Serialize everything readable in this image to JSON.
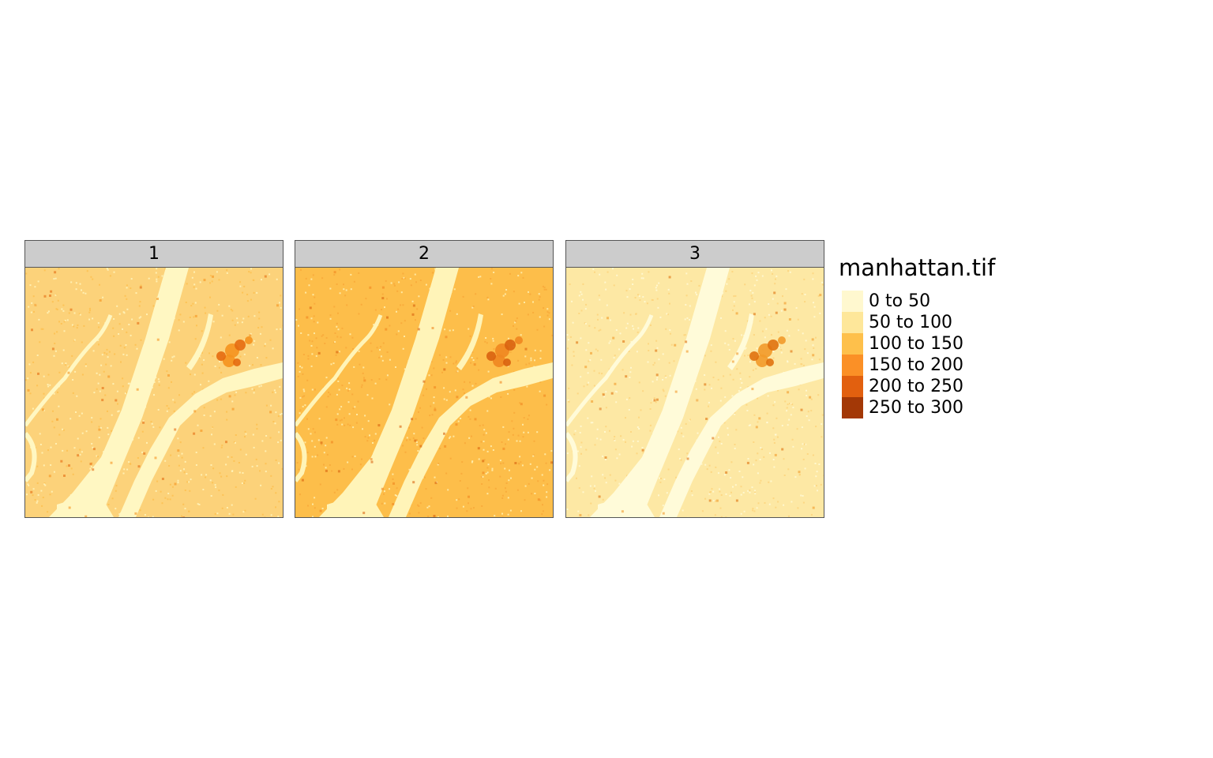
{
  "map": {
    "panels": [
      {
        "label": "1",
        "background": "#fcd27a",
        "water": "#fff7c2",
        "hotspots": [
          "#f5921e",
          "#e56a10"
        ],
        "speckle": "#fdbf4f"
      },
      {
        "label": "2",
        "background": "#fdbe4a",
        "water": "#fff4b8",
        "hotspots": [
          "#f08620",
          "#d9620f"
        ],
        "speckle": "#f7a838"
      },
      {
        "label": "3",
        "background": "#fde8a4",
        "water": "#fffbd9",
        "hotspots": [
          "#f29a2a",
          "#e0720f"
        ],
        "speckle": "#fcd27a"
      }
    ],
    "legend": {
      "title": "manhattan.tif",
      "items": [
        {
          "label": "0 to 50",
          "color": "#fff8cf"
        },
        {
          "label": "50 to 100",
          "color": "#fee79a"
        },
        {
          "label": "100 to 150",
          "color": "#fec04b"
        },
        {
          "label": "150 to 200",
          "color": "#fb9026"
        },
        {
          "label": "200 to 250",
          "color": "#e2600f"
        },
        {
          "label": "250 to 300",
          "color": "#a33806"
        }
      ]
    }
  }
}
